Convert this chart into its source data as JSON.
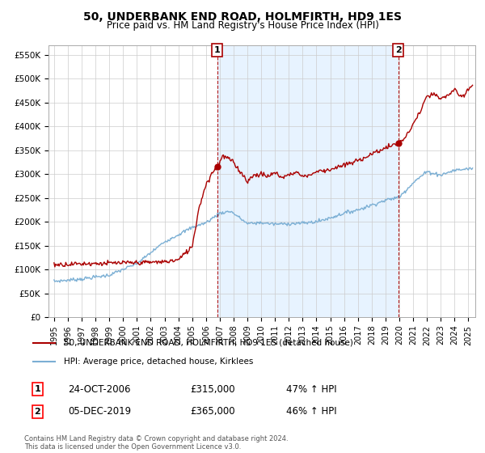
{
  "title": "50, UNDERBANK END ROAD, HOLMFIRTH, HD9 1ES",
  "subtitle": "Price paid vs. HM Land Registry's House Price Index (HPI)",
  "ylim": [
    0,
    570000
  ],
  "xlim_start": 1994.6,
  "xlim_end": 2025.5,
  "hpi_color": "#7bafd4",
  "price_color": "#aa0000",
  "shade_color": "#ddeeff",
  "marker1_date": 2006.82,
  "marker1_price": 315000,
  "marker1_label": "24-OCT-2006",
  "marker1_amount": "£315,000",
  "marker1_pct": "47% ↑ HPI",
  "marker2_date": 2019.92,
  "marker2_price": 365000,
  "marker2_label": "05-DEC-2019",
  "marker2_amount": "£365,000",
  "marker2_pct": "46% ↑ HPI",
  "legend_line1": "50, UNDERBANK END ROAD, HOLMFIRTH, HD9 1ES (detached house)",
  "legend_line2": "HPI: Average price, detached house, Kirklees",
  "footnote": "Contains HM Land Registry data © Crown copyright and database right 2024.\nThis data is licensed under the Open Government Licence v3.0.",
  "background_color": "#ffffff",
  "grid_color": "#cccccc"
}
